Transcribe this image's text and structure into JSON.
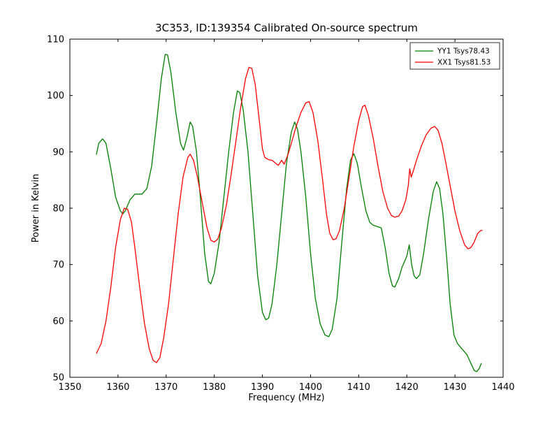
{
  "figure": {
    "title": "3C353, ID:139354 Calibrated On-source spectrum",
    "xlabel": "Frequency (MHz)",
    "ylabel": "Power in Kelvin"
  },
  "legend": {
    "entries": [
      {
        "label": "YY1 Tsys78.43",
        "color": "#008000"
      },
      {
        "label": "XX1 Tsys81.53",
        "color": "#ff0000"
      }
    ]
  },
  "chart_data": {
    "type": "line",
    "title": "3C353, ID:139354 Calibrated On-source spectrum",
    "xlabel": "Frequency (MHz)",
    "ylabel": "Power in Kelvin",
    "xlim": [
      1350,
      1440
    ],
    "ylim": [
      50,
      110
    ],
    "xticks": [
      1350,
      1360,
      1370,
      1380,
      1390,
      1400,
      1410,
      1420,
      1430,
      1440
    ],
    "yticks": [
      50,
      60,
      70,
      80,
      90,
      100,
      110
    ],
    "grid": false,
    "legend_position": "upper right",
    "series": [
      {
        "name": "YY1 Tsys78.43",
        "color": "#008000",
        "x": [
          1355.5,
          1356,
          1356.8,
          1357.5,
          1358.5,
          1359.5,
          1360.5,
          1361,
          1361.5,
          1362.5,
          1363.5,
          1365,
          1366,
          1367,
          1368,
          1369,
          1369.8,
          1370.3,
          1371,
          1372,
          1373,
          1373.6,
          1374.3,
          1375,
          1375.5,
          1376.3,
          1377,
          1378,
          1378.8,
          1379.3,
          1380,
          1381,
          1382,
          1383,
          1384,
          1384.8,
          1385.3,
          1386,
          1387,
          1388,
          1389,
          1390,
          1390.7,
          1391.3,
          1392,
          1393,
          1394,
          1395,
          1396,
          1396.7,
          1397.3,
          1398,
          1399,
          1400,
          1401,
          1402,
          1403,
          1403.8,
          1404.5,
          1405.5,
          1406.5,
          1407.5,
          1408.3,
          1409,
          1409.7,
          1410.5,
          1411.5,
          1412.3,
          1413,
          1414,
          1414.7,
          1415.5,
          1416.3,
          1417,
          1417.5,
          1418.3,
          1419,
          1420,
          1420.5,
          1421,
          1421.5,
          1422,
          1422.7,
          1423.5,
          1424.5,
          1425.5,
          1426.2,
          1426.8,
          1427.5,
          1428.3,
          1429,
          1429.8,
          1430.5,
          1431.5,
          1432.5,
          1433.3,
          1434,
          1434.5,
          1435,
          1435.5
        ],
        "y": [
          89.5,
          91.5,
          92.3,
          91.5,
          87,
          82,
          79.5,
          79,
          79.5,
          81.5,
          82.5,
          82.5,
          83.5,
          87.5,
          95,
          103,
          107.3,
          107.2,
          104,
          97,
          91.5,
          90.3,
          92.5,
          95.3,
          94.5,
          90,
          83,
          72,
          67,
          66.6,
          68.5,
          74,
          82,
          90,
          97,
          100.8,
          100.5,
          97.5,
          90,
          79,
          68,
          61.5,
          60.2,
          60.5,
          63,
          70,
          79,
          88,
          93.5,
          95.3,
          94,
          90,
          82,
          72,
          64,
          59.5,
          57.5,
          57.2,
          58.5,
          64,
          74,
          83.5,
          88.5,
          89.7,
          88,
          84,
          79.5,
          77.5,
          77,
          76.7,
          76.5,
          73,
          68.5,
          66.2,
          66,
          67.5,
          69.5,
          71.5,
          73.5,
          70,
          68,
          67.5,
          68.2,
          72,
          78,
          83,
          84.7,
          83.5,
          79,
          71,
          63,
          57.5,
          56,
          55,
          54,
          52.5,
          51.2,
          51,
          51.5,
          52.5
        ]
      },
      {
        "name": "XX1 Tsys81.53",
        "color": "#ff0000",
        "x": [
          1355.5,
          1356.5,
          1357.5,
          1358.5,
          1359.5,
          1360.5,
          1361.3,
          1362,
          1362.8,
          1363.5,
          1364.5,
          1365.5,
          1366.5,
          1367.3,
          1368,
          1368.7,
          1369.5,
          1370.5,
          1371.5,
          1372.5,
          1373.5,
          1374.5,
          1375,
          1375.7,
          1376.5,
          1377.5,
          1378.5,
          1379.3,
          1380,
          1380.7,
          1381.5,
          1382.5,
          1383.5,
          1384.5,
          1385.5,
          1386.5,
          1387.2,
          1387.8,
          1388.5,
          1389.3,
          1390,
          1390.5,
          1391.3,
          1392,
          1392.7,
          1393.3,
          1394,
          1394.5,
          1395.3,
          1396,
          1397,
          1398,
          1399,
          1399.7,
          1400.5,
          1401.5,
          1402.5,
          1403.3,
          1404,
          1404.7,
          1405.3,
          1406,
          1407,
          1408,
          1409,
          1410,
          1410.8,
          1411.3,
          1412,
          1413,
          1414,
          1415,
          1416,
          1416.8,
          1417.5,
          1418.3,
          1419,
          1419.8,
          1420.3,
          1420.6,
          1420.9,
          1421.3,
          1422,
          1423,
          1424,
          1425,
          1425.8,
          1426.5,
          1427.3,
          1428,
          1429,
          1430,
          1431,
          1432,
          1432.7,
          1433.3,
          1434,
          1434.7,
          1435.3,
          1435.7
        ],
        "y": [
          54.2,
          56,
          60,
          66,
          73,
          78,
          80,
          79.8,
          77.5,
          73,
          66,
          59.5,
          55,
          53,
          52.6,
          53.5,
          57,
          63,
          71,
          79,
          85.5,
          89,
          89.6,
          88.5,
          85.5,
          81,
          76.5,
          74.3,
          74,
          74.5,
          76.5,
          80.5,
          86,
          92,
          98,
          103,
          105,
          104.8,
          102,
          96,
          90.5,
          89,
          88.6,
          88.5,
          88,
          87.6,
          88.5,
          87.8,
          89.5,
          91.5,
          94.5,
          97,
          98.7,
          98.9,
          97,
          92,
          85,
          79,
          75.5,
          74.4,
          74.6,
          76,
          80,
          85.5,
          91,
          95.5,
          98,
          98.3,
          96.5,
          92.5,
          87.5,
          83,
          80,
          78.7,
          78.4,
          78.6,
          79.5,
          81.5,
          84,
          87,
          85.5,
          86.5,
          88.5,
          91,
          93,
          94.2,
          94.5,
          93.8,
          91.5,
          88.5,
          84,
          79.5,
          76,
          73.5,
          72.8,
          73,
          74,
          75.5,
          76,
          76.1
        ]
      }
    ]
  }
}
